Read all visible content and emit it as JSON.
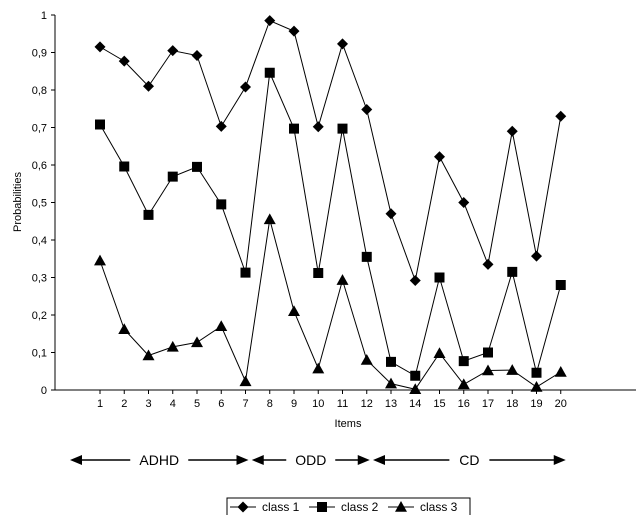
{
  "chart_data": {
    "type": "line",
    "title": "",
    "xlabel": "Items",
    "ylabel": "Probabilities",
    "ylim": [
      0,
      1
    ],
    "yticks": [
      "0",
      "0,1",
      "0,2",
      "0,3",
      "0,4",
      "0,5",
      "0,6",
      "0,7",
      "0,8",
      "0,9",
      "1"
    ],
    "x": [
      1,
      2,
      3,
      4,
      5,
      6,
      7,
      8,
      9,
      10,
      11,
      12,
      13,
      14,
      15,
      16,
      17,
      18,
      19,
      20
    ],
    "series": [
      {
        "name": "class 1",
        "marker": "diamond",
        "values": [
          0.915,
          0.877,
          0.81,
          0.905,
          0.892,
          0.703,
          0.808,
          0.985,
          0.957,
          0.702,
          0.923,
          0.748,
          0.47,
          0.292,
          0.622,
          0.5,
          0.335,
          0.69,
          0.357,
          0.73
        ]
      },
      {
        "name": "class 2",
        "marker": "square",
        "values": [
          0.708,
          0.596,
          0.467,
          0.569,
          0.595,
          0.495,
          0.313,
          0.846,
          0.697,
          0.312,
          0.697,
          0.355,
          0.075,
          0.038,
          0.3,
          0.077,
          0.1,
          0.315,
          0.046,
          0.28
        ]
      },
      {
        "name": "class 3",
        "marker": "triangle",
        "values": [
          0.345,
          0.162,
          0.092,
          0.115,
          0.127,
          0.17,
          0.023,
          0.455,
          0.21,
          0.057,
          0.293,
          0.08,
          0.017,
          0.002,
          0.098,
          0.015,
          0.052,
          0.053,
          0.008,
          0.048
        ]
      }
    ],
    "groups": [
      {
        "label": "ADHD",
        "from": 1,
        "to": 7
      },
      {
        "label": "ODD",
        "from": 8,
        "to": 12
      },
      {
        "label": "CD",
        "from": 13,
        "to": 20
      }
    ],
    "legend_position": "bottom",
    "grid": false
  }
}
